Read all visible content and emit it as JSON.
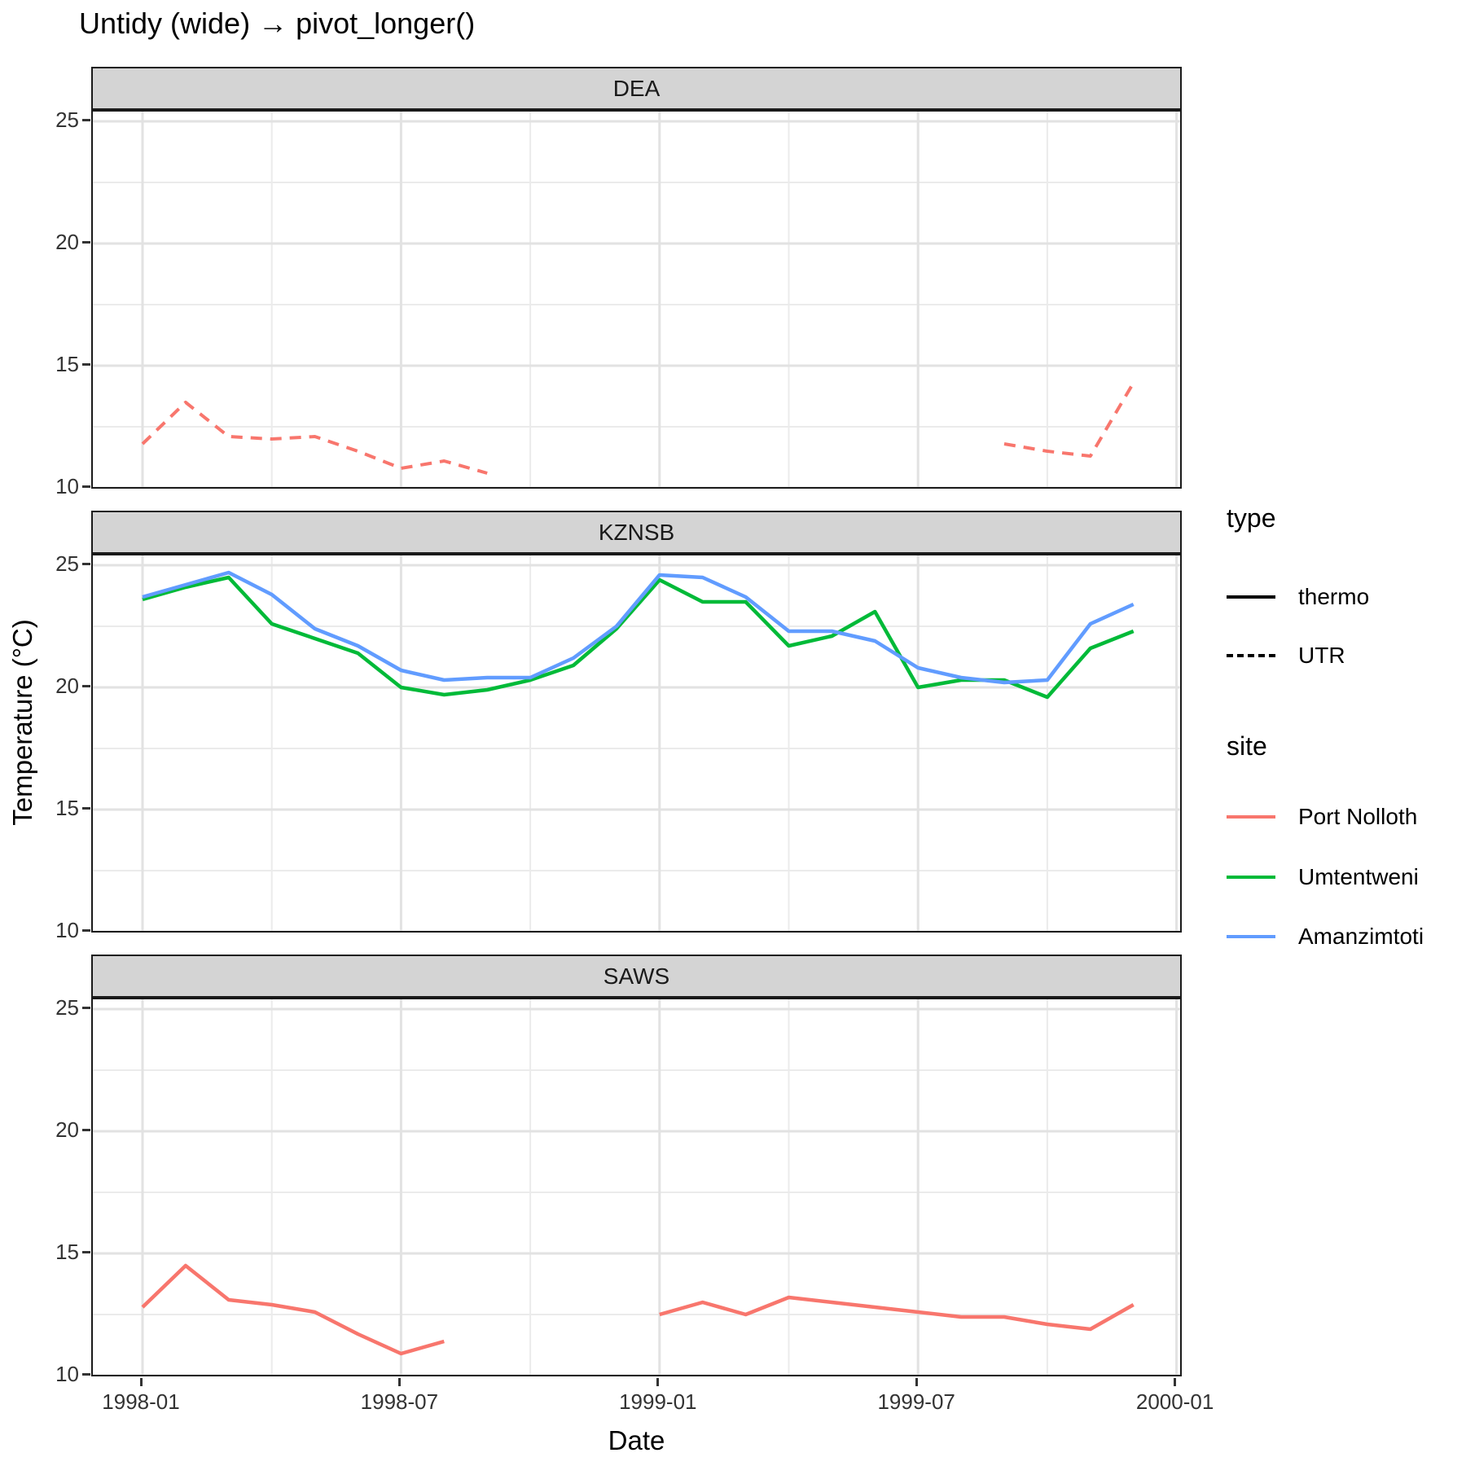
{
  "title": "Untidy (wide) → pivot_longer()",
  "x_axis": {
    "label": "Date",
    "ticks": [
      "1998-01",
      "1998-07",
      "1999-01",
      "1999-07",
      "2000-01"
    ]
  },
  "y_axis": {
    "label": "Temperature (°C)",
    "ticks": [
      "25",
      "20",
      "15",
      "10"
    ]
  },
  "legend": {
    "type": {
      "title": "type",
      "items": [
        {
          "label": "thermo",
          "linestyle": "solid"
        },
        {
          "label": "UTR",
          "linestyle": "dashed"
        }
      ]
    },
    "site": {
      "title": "site",
      "items": [
        {
          "label": "Port Nolloth",
          "color": "#F8766D"
        },
        {
          "label": "Umtentweni",
          "color": "#00BA38"
        },
        {
          "label": "Amanzimtoti",
          "color": "#619CFF"
        }
      ]
    }
  },
  "chart_data": {
    "type": "line",
    "x": [
      "1998-01",
      "1998-02",
      "1998-03",
      "1998-04",
      "1998-05",
      "1998-06",
      "1998-07",
      "1998-08",
      "1998-09",
      "1998-10",
      "1998-11",
      "1998-12",
      "1999-01",
      "1999-02",
      "1999-03",
      "1999-04",
      "1999-05",
      "1999-06",
      "1999-07",
      "1999-08",
      "1999-09",
      "1999-10",
      "1999-11",
      "1999-12"
    ],
    "x_tick_months": [
      0,
      6,
      12,
      18,
      24
    ],
    "x_minor_months": [
      3,
      9,
      15,
      21
    ],
    "y_ticks": [
      25,
      20,
      15,
      10
    ],
    "y_minor_ticks": [
      22.5,
      17.5,
      12.5
    ],
    "ylim": [
      9.9,
      25.4
    ],
    "grid": true,
    "legend_position": "right",
    "facets": [
      {
        "label": "DEA",
        "series": [
          {
            "site": "Port Nolloth",
            "type": "UTR",
            "color": "#F8766D",
            "dashed": true,
            "values": [
              11.8,
              13.5,
              12.1,
              12.0,
              12.1,
              11.5,
              10.8,
              11.1,
              10.6,
              null,
              null,
              null,
              null,
              null,
              null,
              null,
              null,
              null,
              null,
              null,
              11.8,
              11.5,
              11.3,
              14.3
            ]
          }
        ]
      },
      {
        "label": "KZNSB",
        "series": [
          {
            "site": "Umtentweni",
            "type": "thermo",
            "color": "#00BA38",
            "dashed": false,
            "values": [
              23.6,
              24.1,
              24.5,
              22.6,
              22.0,
              21.4,
              20.0,
              19.7,
              19.9,
              20.3,
              20.9,
              22.4,
              24.4,
              23.5,
              23.5,
              21.7,
              22.1,
              23.1,
              20.0,
              20.3,
              20.3,
              19.6,
              21.6,
              22.3
            ]
          },
          {
            "site": "Amanzimtoti",
            "type": "thermo",
            "color": "#619CFF",
            "dashed": false,
            "values": [
              23.7,
              24.2,
              24.7,
              23.8,
              22.4,
              21.7,
              20.7,
              20.3,
              20.4,
              20.4,
              21.2,
              22.5,
              24.6,
              24.5,
              23.7,
              22.3,
              22.3,
              21.9,
              20.8,
              20.4,
              20.2,
              20.3,
              22.6,
              23.4
            ]
          }
        ]
      },
      {
        "label": "SAWS",
        "series": [
          {
            "site": "Port Nolloth",
            "type": "thermo",
            "color": "#F8766D",
            "dashed": false,
            "values": [
              12.8,
              14.5,
              13.1,
              12.9,
              12.6,
              11.7,
              10.9,
              11.4,
              null,
              null,
              null,
              null,
              12.5,
              13.0,
              12.5,
              13.2,
              13.0,
              12.8,
              12.6,
              12.4,
              12.4,
              12.1,
              11.9,
              12.9
            ]
          }
        ]
      }
    ]
  }
}
